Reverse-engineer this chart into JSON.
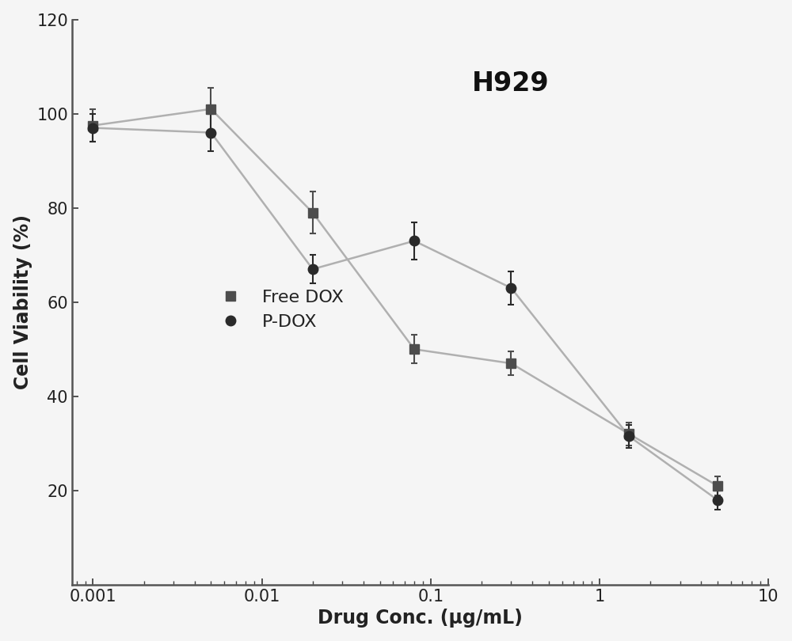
{
  "title": "H929",
  "xlabel": "Drug Conc. (μg/mL)",
  "ylabel": "Cell Viability (%)",
  "ylim": [
    0,
    120
  ],
  "yticks": [
    20,
    40,
    60,
    80,
    100,
    120
  ],
  "background_color": "#f5f5f5",
  "plot_bg_color": "#f5f5f5",
  "free_dox": {
    "x": [
      0.001,
      0.005,
      0.02,
      0.08,
      0.3,
      1.5,
      5.0
    ],
    "y": [
      97.5,
      101.0,
      79.0,
      50.0,
      47.0,
      32.0,
      21.0
    ],
    "yerr": [
      3.5,
      4.5,
      4.5,
      3.0,
      2.5,
      2.5,
      2.0
    ],
    "marker_color": "#4d4d4d",
    "line_color": "#b0b0b0",
    "marker": "s",
    "label": "Free DOX"
  },
  "pdox": {
    "x": [
      0.001,
      0.005,
      0.02,
      0.08,
      0.3,
      1.5,
      5.0
    ],
    "y": [
      97.0,
      96.0,
      67.0,
      73.0,
      63.0,
      31.5,
      18.0
    ],
    "yerr": [
      3.0,
      4.0,
      3.0,
      4.0,
      3.5,
      2.5,
      2.0
    ],
    "marker_color": "#2a2a2a",
    "line_color": "#b0b0b0",
    "marker": "o",
    "label": "P-DOX"
  },
  "title_fontsize": 24,
  "label_fontsize": 17,
  "tick_fontsize": 15,
  "legend_fontsize": 16
}
